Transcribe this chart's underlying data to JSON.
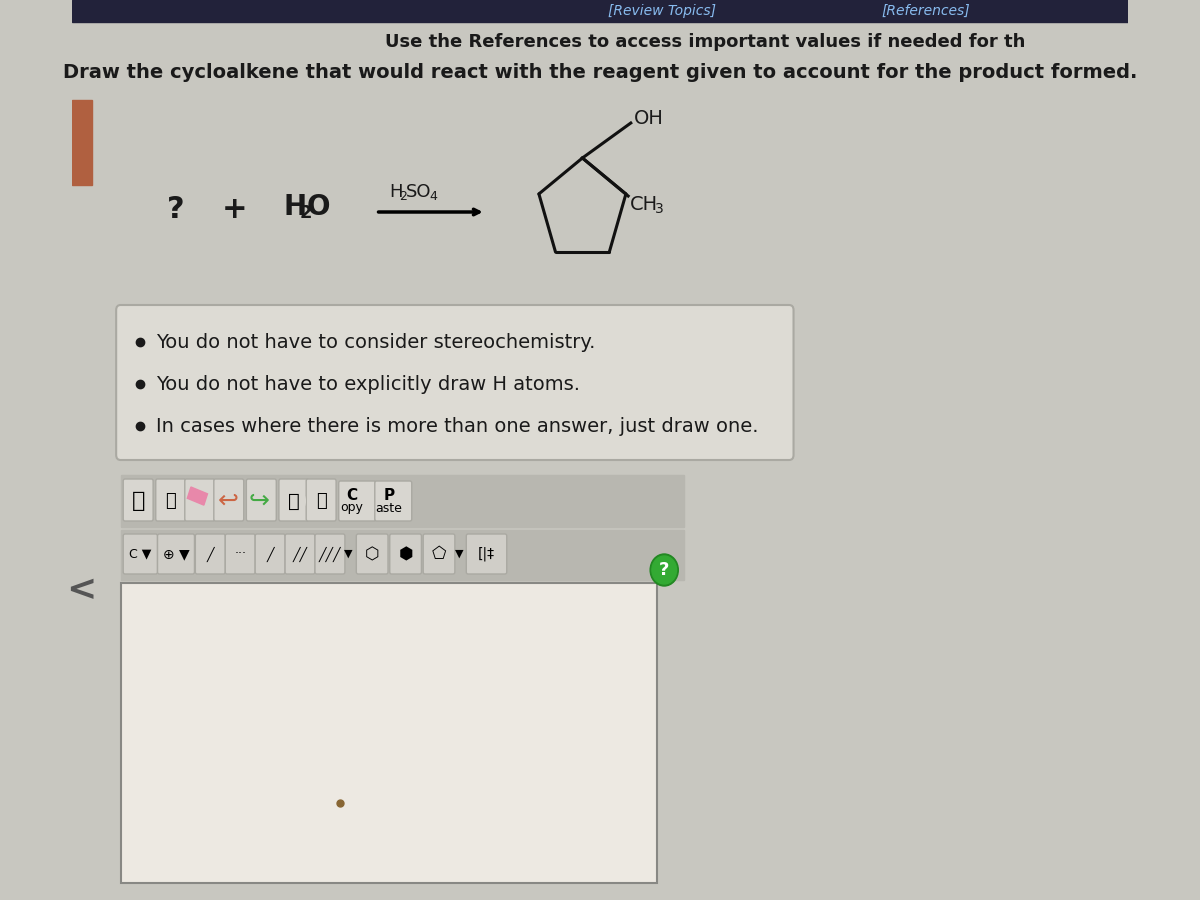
{
  "bg_color": "#c8c7c0",
  "top_bar_color": "#1a1a2e",
  "title_text": "Use the References to access important values if needed for th",
  "question_text": "Draw the cycloalkene that would react with the reagent given to account for the product formed.",
  "review_topics_text": "[Review Topics]",
  "references_text": "[References]",
  "bullet_points": [
    "You do not have to consider stereochemistry.",
    "You do not have to explicitly draw H atoms.",
    "In cases where there is more than one answer, just draw one."
  ],
  "font_color_dark": "#1a1a1a",
  "left_tab_color": "#b06040",
  "toolbar_bg": "#c0bfb8",
  "drawing_area_bg": "#ede9e2",
  "bullet_box_bg": "#dddbd4",
  "bullet_box_edge": "#aaa9a2"
}
